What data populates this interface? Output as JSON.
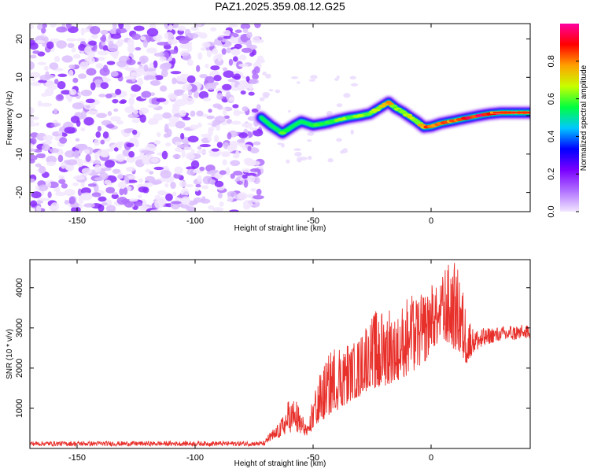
{
  "title": "PAZ1.2025.359.08.12.G25",
  "chart_data": [
    {
      "type": "heatmap",
      "xlabel": "Height of straight line (km)",
      "ylabel": "Frequency (Hz)",
      "xlim": [
        -170,
        42
      ],
      "ylim": [
        -25,
        24
      ],
      "xticks": [
        -150,
        -100,
        -50,
        0
      ],
      "yticks": [
        -20,
        -10,
        0,
        10,
        20
      ],
      "colorbar": {
        "label": "Normalized spectral amplitude",
        "range": [
          0.0,
          1.0
        ],
        "ticks": [
          0.0,
          0.2,
          0.4,
          0.6,
          0.8
        ],
        "tick_labels": [
          "0.0",
          "0.2",
          "0.4",
          "0.6",
          "0.8"
        ],
        "colors": [
          "#f2e6ff",
          "#b070ff",
          "#7a00ff",
          "#0000ff",
          "#00c8ff",
          "#00ff40",
          "#c8ff00",
          "#ffa000",
          "#ff0000",
          "#ff00a0"
        ]
      },
      "noise_region": {
        "x_range": [
          -170,
          -72
        ],
        "y_range": [
          -25,
          24
        ],
        "amplitude_range": [
          0.02,
          0.15
        ]
      },
      "signal_track": {
        "x": [
          -72,
          -68,
          -63,
          -58,
          -55,
          -50,
          -45,
          -40,
          -35,
          -30,
          -26,
          -22,
          -18,
          -15,
          -12,
          -9,
          -6,
          -3,
          0,
          4,
          8,
          12,
          16,
          20,
          25,
          30,
          35,
          42
        ],
        "frequency": [
          -0.5,
          -2.5,
          -4.5,
          -2.5,
          -1.5,
          -2.5,
          -2.0,
          -1.2,
          -0.5,
          0.0,
          0.5,
          2.0,
          3.5,
          2.0,
          1.0,
          -0.3,
          -1.5,
          -3.0,
          -2.8,
          -2.0,
          -1.5,
          -1.0,
          -0.5,
          0.0,
          0.5,
          0.8,
          0.8,
          0.8
        ],
        "amplitude": [
          0.35,
          0.5,
          0.6,
          0.55,
          0.5,
          0.55,
          0.55,
          0.6,
          0.6,
          0.6,
          0.65,
          0.7,
          0.75,
          0.65,
          0.6,
          0.7,
          0.6,
          0.8,
          0.8,
          0.8,
          0.8,
          0.85,
          0.9,
          0.9,
          0.95,
          0.95,
          0.95,
          0.95
        ]
      }
    },
    {
      "type": "line",
      "series": [
        {
          "name": "SNR",
          "color": "#e8302b"
        }
      ],
      "xlabel": "Height of straight line (km)",
      "ylabel": "SNR (10 * v/v)",
      "xlim": [
        -170,
        42
      ],
      "ylim": [
        0,
        4700
      ],
      "xticks": [
        -150,
        -100,
        -50,
        0
      ],
      "yticks": [
        1000,
        2000,
        3000,
        4000
      ],
      "baseline": {
        "x_range": [
          -170,
          -70
        ],
        "mean": 120,
        "jitter": 60
      },
      "envelope": {
        "x": [
          -70,
          -65,
          -62,
          -60,
          -57,
          -55,
          -52,
          -50,
          -46,
          -42,
          -38,
          -34,
          -30,
          -26,
          -22,
          -18,
          -14,
          -10,
          -6,
          -2,
          0,
          3,
          6,
          9,
          12,
          15,
          18,
          24,
          30,
          36,
          42
        ],
        "low": [
          120,
          250,
          350,
          400,
          400,
          350,
          300,
          500,
          700,
          900,
          1000,
          1200,
          1300,
          1500,
          1500,
          1600,
          1700,
          1800,
          2000,
          2200,
          2500,
          2600,
          2500,
          2500,
          2400,
          2100,
          2400,
          2600,
          2700,
          2700,
          2750
        ],
        "high": [
          300,
          600,
          900,
          1300,
          1200,
          900,
          500,
          1500,
          2000,
          2500,
          2700,
          2600,
          2900,
          3300,
          3500,
          3600,
          3300,
          3900,
          3800,
          3900,
          4200,
          4000,
          4600,
          4700,
          4500,
          3400,
          3000,
          3000,
          3050,
          3100,
          3050
        ]
      }
    }
  ]
}
